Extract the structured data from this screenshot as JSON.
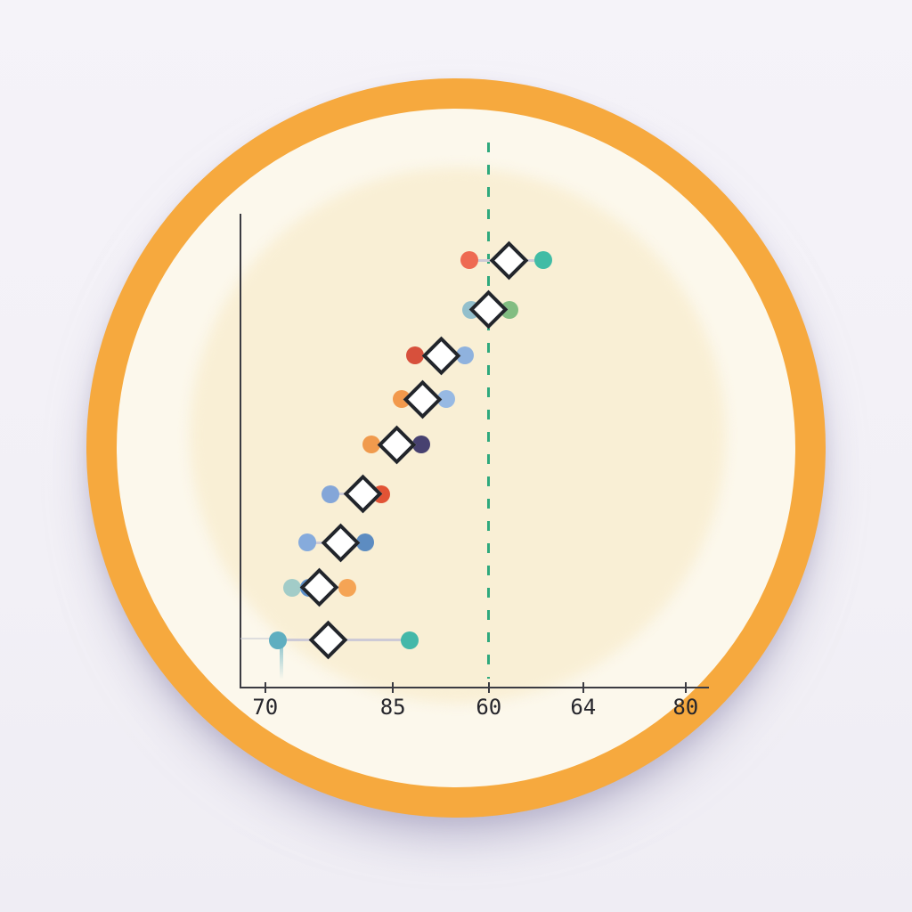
{
  "page": {
    "background_color": "#F3F1F7"
  },
  "badge": {
    "ring_color": "#F6A93E",
    "plate_color": "#FCF8EC",
    "inner_circle_color": "#F9EFD5"
  },
  "chart_data": {
    "type": "scatter",
    "subtype": "forest-dot-plot",
    "title": "",
    "xlabel": "",
    "ylabel": "",
    "grid": false,
    "legend": false,
    "axis_color": "#3B3B42",
    "tick_label_color": "#26262C",
    "connector_color": "#CDCAD6",
    "x_ticks": [
      {
        "label": "70",
        "pos": 0.053
      },
      {
        "label": "85",
        "pos": 0.326
      },
      {
        "label": "60",
        "pos": 0.531
      },
      {
        "label": "64",
        "pos": 0.733
      },
      {
        "label": "80",
        "pos": 0.952
      }
    ],
    "reference_line": {
      "pos": 0.53,
      "style": "dashed",
      "color": "#2FA97D"
    },
    "diamond": {
      "fill": "#FFFFFF",
      "border_color": "#22252B"
    },
    "rows": [
      {
        "y": 0.098,
        "left": {
          "x": 0.49,
          "color": "#EE6A52"
        },
        "diamond_x": 0.575,
        "right": {
          "x": 0.648,
          "color": "#41BCA5"
        }
      },
      {
        "y": 0.203,
        "left": {
          "x": 0.493,
          "color": "#93BFCC"
        },
        "diamond_x": 0.531,
        "right": {
          "x": 0.575,
          "color": "#82BD82"
        }
      },
      {
        "y": 0.299,
        "left": {
          "x": 0.373,
          "color": "#D7503C"
        },
        "diamond_x": 0.429,
        "right": {
          "x": 0.48,
          "color": "#8FB2DE"
        }
      },
      {
        "y": 0.391,
        "left": {
          "x": 0.345,
          "color": "#F2994C"
        },
        "diamond_x": 0.39,
        "right": {
          "x": 0.44,
          "color": "#97B9E3"
        }
      },
      {
        "y": 0.487,
        "left": {
          "x": 0.28,
          "color": "#F09A4D"
        },
        "diamond_x": 0.335,
        "right": {
          "x": 0.387,
          "color": "#474170"
        }
      },
      {
        "y": 0.592,
        "left": {
          "x": 0.192,
          "color": "#84A6D8"
        },
        "diamond_x": 0.261,
        "right": {
          "x": 0.301,
          "color": "#E25335"
        }
      },
      {
        "y": 0.694,
        "left": {
          "x": 0.143,
          "color": "#86ABDC"
        },
        "diamond_x": 0.215,
        "right": {
          "x": 0.267,
          "color": "#5D8CC1"
        }
      },
      {
        "y": 0.789,
        "left": {
          "x": 0.11,
          "color": "#A2CCC8"
        },
        "extra": {
          "x": 0.147,
          "color": "#5C90CB"
        },
        "diamond_x": 0.168,
        "right": {
          "x": 0.229,
          "color": "#F5A455"
        }
      },
      {
        "y": 0.9,
        "left": {
          "x": 0.08,
          "color": "#5FAEC0"
        },
        "diamond_x": 0.187,
        "right": {
          "x": 0.362,
          "color": "#44B8A9"
        },
        "tail_from_axis": true,
        "drip": true
      }
    ]
  }
}
